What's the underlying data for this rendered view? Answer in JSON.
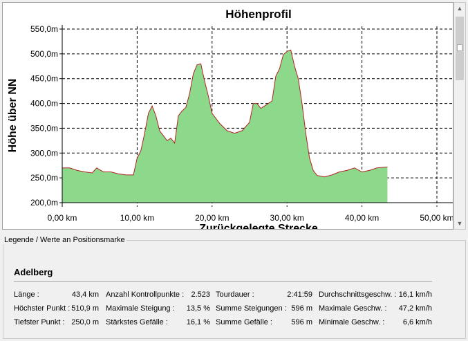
{
  "chart": {
    "title": "Höhenprofil",
    "y_axis_label": "Höhe über NN",
    "x_axis_label": "Zurückgelegte Strecke"
  },
  "chart_data": {
    "type": "area",
    "title": "Höhenprofil",
    "xlabel": "Zurückgelegte Strecke",
    "ylabel": "Höhe über NN",
    "xlim": [
      0,
      50
    ],
    "ylim": [
      200,
      550
    ],
    "x_ticks": [
      0,
      10,
      20,
      30,
      40,
      50
    ],
    "x_tick_labels": [
      "0,00 km",
      "10,00 km",
      "20,00 km",
      "30,00 km",
      "40,00 km",
      "50,00 km"
    ],
    "y_ticks": [
      200,
      250,
      300,
      350,
      400,
      450,
      500,
      550
    ],
    "y_tick_labels": [
      "200,0m",
      "250,0m",
      "300,0m",
      "350,0m",
      "400,0m",
      "450,0m",
      "500,0m",
      "550,0m"
    ],
    "grid": true,
    "colors": {
      "fill": "#8cd98c",
      "line": "#b22222",
      "steep": "#c0394a",
      "moderate": "#e8e070"
    },
    "x": [
      0,
      1,
      2,
      3,
      4,
      4.6,
      5.5,
      6.5,
      7.5,
      8.5,
      9.5,
      10,
      10.5,
      11,
      11.5,
      12,
      12.5,
      13,
      13.5,
      14,
      14.5,
      15,
      15.5,
      16,
      16.5,
      17,
      17.5,
      18,
      18.5,
      19,
      19.5,
      20,
      20.5,
      21,
      22,
      23,
      24,
      25,
      25.5,
      26,
      26.5,
      27,
      27.5,
      28,
      28.5,
      29,
      29.5,
      30,
      30.5,
      31,
      31.5,
      32,
      32.5,
      33,
      33.5,
      34,
      35,
      36,
      37,
      38,
      39,
      40,
      41,
      42,
      43.4
    ],
    "y": [
      270,
      270,
      265,
      262,
      260,
      270,
      262,
      262,
      258,
      256,
      256,
      290,
      305,
      340,
      380,
      395,
      375,
      345,
      335,
      325,
      330,
      320,
      375,
      385,
      392,
      420,
      460,
      478,
      480,
      445,
      415,
      380,
      370,
      360,
      345,
      340,
      345,
      362,
      400,
      400,
      390,
      395,
      400,
      405,
      455,
      470,
      498,
      505,
      508,
      475,
      450,
      400,
      340,
      290,
      265,
      255,
      252,
      256,
      262,
      265,
      270,
      262,
      265,
      270,
      272
    ],
    "steep_segments": [
      [
        11.4,
        11.8
      ],
      [
        16.3,
        16.6
      ],
      [
        17.6,
        17.9
      ],
      [
        29.0,
        29.3
      ]
    ],
    "moderate_segments": [
      [
        4.3,
        4.6
      ],
      [
        9.6,
        10.1
      ],
      [
        10.6,
        11.2
      ],
      [
        12.2,
        12.6
      ],
      [
        15.6,
        16.0
      ],
      [
        17.0,
        17.4
      ],
      [
        18.6,
        19.0
      ],
      [
        22.8,
        23.1
      ],
      [
        23.8,
        24.1
      ],
      [
        25.0,
        25.3
      ],
      [
        28.3,
        28.7
      ],
      [
        29.6,
        30.0
      ],
      [
        36.8,
        37.1
      ],
      [
        38.9,
        39.2
      ],
      [
        41.2,
        41.5
      ]
    ]
  },
  "scrollbar": {
    "up_arrow": "▲",
    "down_arrow": "▼"
  },
  "legend": {
    "caption": "Legende / Werte an Positionsmarke",
    "route_name": "Adelberg",
    "stats": {
      "length_label": "Länge :",
      "length_value": "43,4 km",
      "highest_label": "Höchster Punkt :",
      "highest_value": "510,9 m",
      "lowest_label": "Tiefster Punkt :",
      "lowest_value": "250,0 m",
      "checkpoints_label": "Anzahl Kontrollpunkte :",
      "checkpoints_value": "2.523",
      "max_incline_label": "Maximale Steigung :",
      "max_incline_value": "13,5 %",
      "max_decline_label": "Stärkstes Gefälle :",
      "max_decline_value": "16,1 %",
      "duration_label": "Tourdauer :",
      "duration_value": "2:41:59",
      "total_ascent_label": "Summe Steigungen :",
      "total_ascent_value": "596 m",
      "total_descent_label": "Summe Gefälle :",
      "total_descent_value": "596 m",
      "avg_speed_label": "Durchschnittsgeschw. :",
      "avg_speed_value": "16,1 km/h",
      "max_speed_label": "Maximale Geschw. :",
      "max_speed_value": "47,2 km/h",
      "min_speed_label": "Minimale Geschw. :",
      "min_speed_value": "6,6 km/h"
    }
  }
}
